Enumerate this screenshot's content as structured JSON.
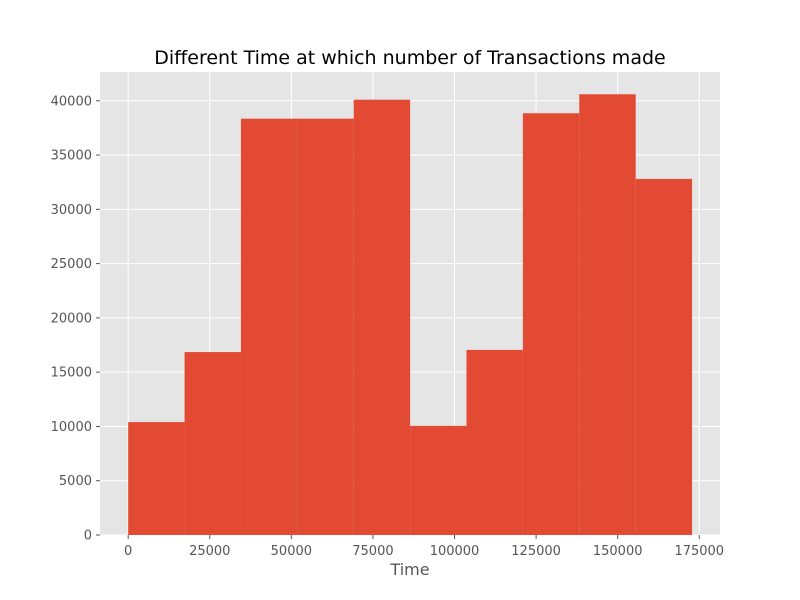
{
  "chart_data": {
    "type": "bar",
    "title": "Different Time at which number of Transactions made",
    "xlabel": "Time",
    "ylabel": "",
    "grid": true,
    "xlim": [
      -8636,
      181352
    ],
    "ylim": [
      0,
      42650
    ],
    "x_ticks": [
      0,
      25000,
      50000,
      75000,
      100000,
      125000,
      150000,
      175000
    ],
    "y_ticks": [
      0,
      5000,
      10000,
      15000,
      20000,
      25000,
      30000,
      35000,
      40000
    ],
    "bins": [
      {
        "start": 0,
        "end": 17279,
        "value": 10400
      },
      {
        "start": 17279,
        "end": 34558,
        "value": 16850
      },
      {
        "start": 34558,
        "end": 51837,
        "value": 38350
      },
      {
        "start": 51837,
        "end": 69116,
        "value": 38350
      },
      {
        "start": 69116,
        "end": 86395,
        "value": 40100
      },
      {
        "start": 86395,
        "end": 103674,
        "value": 10050
      },
      {
        "start": 103674,
        "end": 120953,
        "value": 17050
      },
      {
        "start": 120953,
        "end": 138232,
        "value": 38850
      },
      {
        "start": 138232,
        "end": 155511,
        "value": 40600
      },
      {
        "start": 155511,
        "end": 172792,
        "value": 32800
      }
    ],
    "colors": {
      "bar": "#E24A33",
      "background": "#E5E5E5",
      "grid": "#FFFFFF",
      "tick_label": "#555555",
      "title": "#000000"
    }
  }
}
